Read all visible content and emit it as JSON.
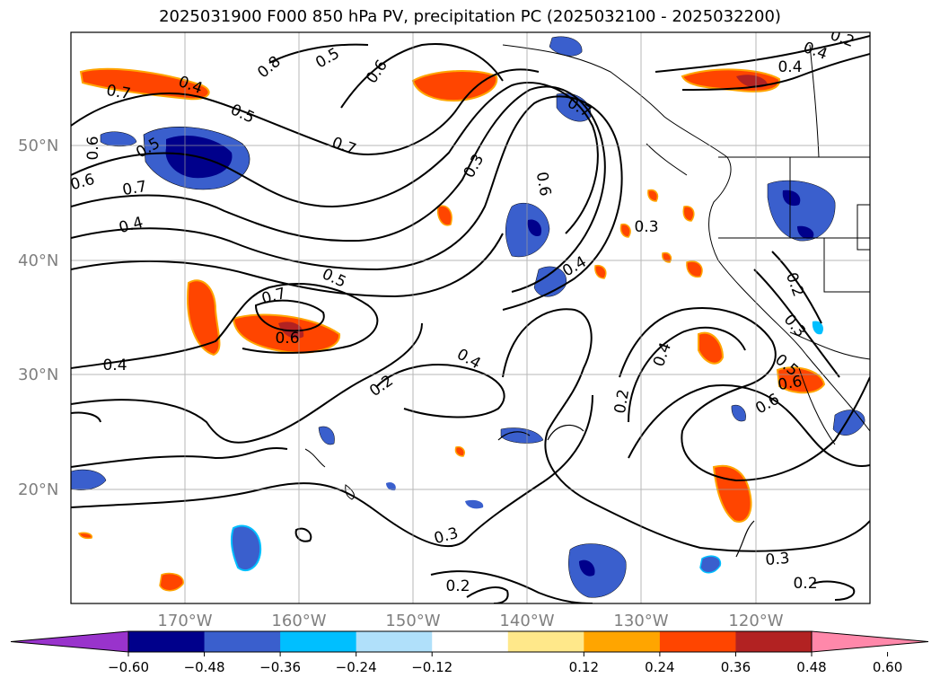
{
  "title": "2025031900 F000 850 hPa PV, precipitation PC (2025032100 - 2025032200)",
  "map": {
    "lat_labels": [
      "50°N",
      "40°N",
      "30°N",
      "20°N"
    ],
    "lon_labels": [
      "170°W",
      "160°W",
      "150°W",
      "140°W",
      "130°W",
      "120°W"
    ],
    "grid": true,
    "contour_labels": [
      "0.7",
      "0.4",
      "0.5",
      "0.8",
      "0.6",
      "0.5",
      "0.7",
      "0.6",
      "0.5",
      "0.7",
      "0.6",
      "0.4",
      "0.7",
      "0.6",
      "0.5",
      "0.4",
      "0.2",
      "0.3",
      "0.6",
      "0.7",
      "0.4",
      "0.3",
      "0.4",
      "0.2",
      "0.3",
      "0.2",
      "0.6",
      "0.3",
      "0.4",
      "0.2",
      "0.2",
      "0.5",
      "0.6",
      "0.4",
      "0.3",
      "0.2",
      "0.4"
    ]
  },
  "colorbar": {
    "ticks": [
      "−0.60",
      "−0.48",
      "−0.36",
      "−0.24",
      "−0.12",
      "0.12",
      "0.24",
      "0.36",
      "0.48",
      "0.60"
    ],
    "colors": [
      "#9933cc",
      "#00008b",
      "#3a5fcd",
      "#00bfff",
      "#b0e0fa",
      "#ffffff",
      "#ffe88a",
      "#ffa500",
      "#ff4500",
      "#b22222",
      "#ff88aa"
    ]
  }
}
